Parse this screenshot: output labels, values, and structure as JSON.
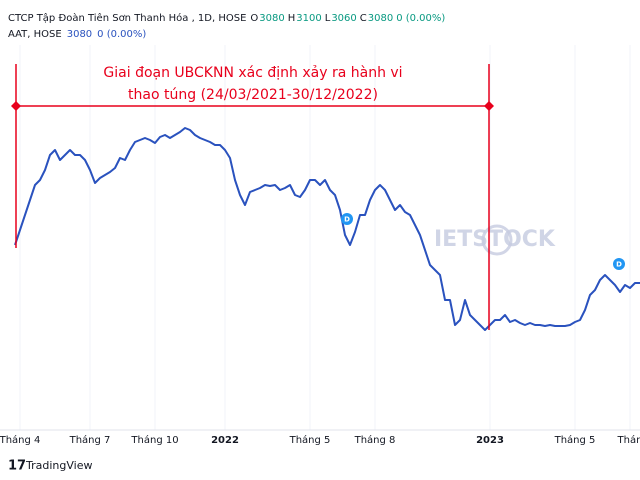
{
  "chart_data": {
    "type": "line",
    "title": "CTCP Tập Đoàn Tiên Sơn Thanh Hóa , 1D, HOSE",
    "ohlc": [
      {
        "label": "O",
        "value": "3080"
      },
      {
        "label": "H",
        "value": "3100"
      },
      {
        "label": "L",
        "value": "3060"
      },
      {
        "label": "C",
        "value": "3080"
      }
    ],
    "change": "0 (0.00%)",
    "categories": [
      null,
      "Tháng 4",
      null,
      null,
      null,
      null,
      null,
      null,
      null,
      null,
      null,
      null,
      null,
      null,
      null,
      "Tháng 7",
      null,
      null,
      null,
      null,
      null,
      null,
      null,
      null,
      null,
      null,
      null,
      null,
      "Tháng 10",
      null,
      null,
      null,
      null,
      null,
      null,
      null,
      null,
      null,
      null,
      null,
      null,
      null,
      "2022",
      null,
      null,
      null,
      null,
      null,
      null,
      null,
      null,
      null,
      null,
      null,
      null,
      null,
      null,
      null,
      null,
      "Tháng 5",
      null,
      null,
      null,
      null,
      null,
      null,
      null,
      null,
      null,
      null,
      null,
      null,
      "Tháng 8",
      null,
      null,
      null,
      null,
      null,
      null,
      null,
      null,
      null,
      null,
      null,
      null,
      null,
      null,
      null,
      null,
      null,
      null,
      null,
      null,
      null,
      null,
      "2023",
      null,
      null,
      null,
      null,
      null,
      null,
      null,
      null,
      null,
      null,
      null,
      null,
      null,
      null,
      null,
      null,
      "Tháng 5",
      null,
      null,
      null,
      null,
      null,
      null,
      null,
      null,
      null,
      null,
      "Thán",
      null,
      null
    ],
    "series": [
      {
        "name": "AAT, HOSE",
        "color": "#2a52be",
        "last": "3080",
        "change": "0 (0.00%)",
        "values": [
          3840,
          4140,
          4440,
          4740,
          5040,
          5140,
          5340,
          5640,
          5740,
          5540,
          5640,
          5740,
          5640,
          5640,
          5540,
          5340,
          5080,
          5180,
          5240,
          5300,
          5380,
          5580,
          5540,
          5740,
          5900,
          5940,
          5980,
          5940,
          5880,
          6000,
          6040,
          5980,
          6040,
          6100,
          6180,
          6140,
          6040,
          5980,
          5940,
          5900,
          5840,
          5840,
          5740,
          5580,
          5140,
          4840,
          4640,
          4900,
          4940,
          4980,
          5040,
          5020,
          5040,
          4940,
          4980,
          5040,
          4840,
          4800,
          4940,
          5140,
          5140,
          5040,
          5140,
          4940,
          4840,
          4540,
          4040,
          3840,
          4100,
          4440,
          4440,
          4740,
          4940,
          5040,
          4940,
          4740,
          4540,
          4640,
          4500,
          4440,
          4240,
          4040,
          3740,
          3440,
          3340,
          3240,
          2740,
          2740,
          2240,
          2340,
          2740,
          2440,
          2340,
          2240,
          2140,
          2240,
          2340,
          2340,
          2440,
          2300,
          2340,
          2280,
          2240,
          2280,
          2240,
          2240,
          2220,
          2240,
          2220,
          2220,
          2220,
          2240,
          2300,
          2340,
          2540,
          2840,
          2940,
          3140,
          3240,
          3140,
          3040,
          2900,
          3040,
          2980,
          3080,
          3080
        ]
      }
    ],
    "ylim": [
      140,
      8740
    ],
    "grid": true,
    "annotation": [
      "Giai đoạn UBCKNN xác định xảy ra hành vi",
      "thao túng (24/03/2021-30/12/2022)"
    ],
    "markers": [
      "D",
      "D"
    ],
    "watermark": "IETSTOCK",
    "footer": "TradingView"
  }
}
